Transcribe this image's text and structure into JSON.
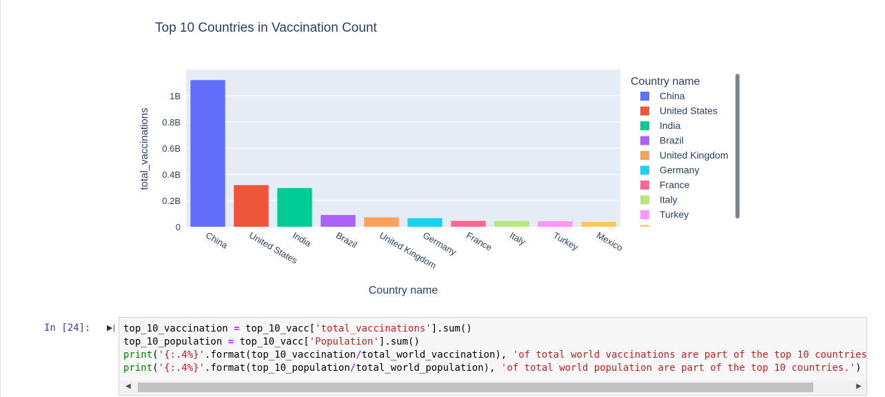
{
  "chart_data": {
    "type": "bar",
    "title": "Top 10 Countries in Vaccination Count",
    "xlabel": "Country name",
    "ylabel": "total_vaccinations",
    "categories": [
      "China",
      "United States",
      "India",
      "Brazil",
      "United Kingdom",
      "Germany",
      "France",
      "Italy",
      "Turkey",
      "Mexico"
    ],
    "values": [
      1120000000,
      318000000,
      296000000,
      90000000,
      72000000,
      66000000,
      45000000,
      45000000,
      42000000,
      38000000
    ],
    "colors": [
      "#636efa",
      "#ef553b",
      "#00cc96",
      "#ab63fa",
      "#ffa15a",
      "#19d3f3",
      "#ff6692",
      "#b6e880",
      "#ff97ff",
      "#fecb52"
    ],
    "ylim": [
      0,
      1200000000
    ],
    "yticks": [
      0,
      200000000,
      400000000,
      600000000,
      800000000,
      1000000000
    ],
    "ytick_labels": [
      "0",
      "0.2B",
      "0.4B",
      "0.6B",
      "0.8B",
      "1B"
    ],
    "grid": true,
    "legend": {
      "title": "Country name",
      "placement": "right",
      "entries": [
        "China",
        "United States",
        "India",
        "Brazil",
        "United Kingdom",
        "Germany",
        "France",
        "Italy",
        "Turkey",
        "Mexico"
      ]
    }
  },
  "cell": {
    "prompt": "In [24]:",
    "run_icon": "run-cell-icon"
  }
}
